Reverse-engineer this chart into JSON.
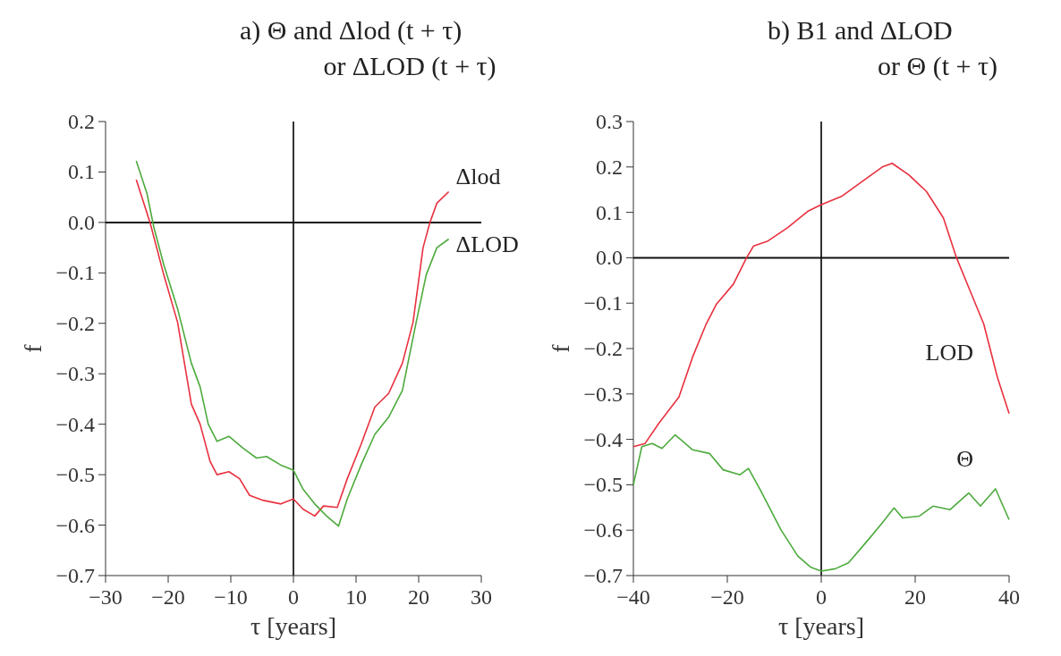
{
  "chart_data": [
    {
      "type": "line",
      "title": "a)  Θ and Δlod (t + τ)",
      "subtitle": "or  ΔLOD (t + τ)",
      "xlabel": "τ [years]",
      "ylabel": "f",
      "xlim": [
        -30,
        30
      ],
      "xticks": [
        {
          "value": -30,
          "label": "−30"
        },
        {
          "value": -20,
          "label": "−20"
        },
        {
          "value": -10,
          "label": "−10"
        },
        0,
        30,
        10,
        20
      ],
      "ylim": [
        -0.7,
        0.2
      ],
      "yticks": [
        {
          "value": -0.7,
          "label": "−0.7"
        },
        {
          "value": -0.6,
          "label": "−0.6"
        },
        {
          "value": -0.5,
          "label": "−0.5"
        },
        {
          "value": -0.4,
          "label": "−0.4"
        },
        {
          "value": -0.3,
          "label": "−0.3"
        },
        {
          "value": -0.2,
          "label": "−0.2"
        },
        {
          "value": -0.1,
          "label": "−0.1"
        },
        {
          "value": 0,
          "label": "0.0"
        },
        0.1,
        0.2
      ],
      "grid": false,
      "ref_lines": [
        {
          "axis": "x",
          "value": 0,
          "color": "#333333"
        },
        {
          "axis": "y",
          "value": 0,
          "color": "#111111"
        }
      ],
      "series": [
        {
          "name": "Δlod",
          "color": "#e8303f",
          "x": [
            -25.1,
            -22.9,
            -20.7,
            -18.5,
            -16.3,
            -14.9,
            -13.3,
            -12.2,
            -10.3,
            -8.6,
            -7.0,
            -4.8,
            -2.0,
            0,
            1.5,
            3.4,
            4.8,
            7.0,
            8.6,
            10.8,
            13.0,
            15.2,
            17.4,
            19.1,
            20.7,
            21.8,
            22.9,
            24.8
          ],
          "values": [
            0.085,
            0,
            -0.104,
            -0.198,
            -0.36,
            -0.4,
            -0.474,
            -0.5,
            -0.494,
            -0.508,
            -0.541,
            -0.551,
            -0.558,
            -0.548,
            -0.568,
            -0.582,
            -0.562,
            -0.565,
            -0.508,
            -0.44,
            -0.366,
            -0.339,
            -0.279,
            -0.198,
            -0.05,
            0,
            0.038,
            0.061
          ]
        },
        {
          "name": "ΔLOD",
          "color": "#4caa3c",
          "x": [
            -25.1,
            -23.4,
            -22.3,
            -20.7,
            -18.5,
            -16.3,
            -14.9,
            -13.6,
            -12.2,
            -10.3,
            -8.1,
            -5.9,
            -4.3,
            -2.0,
            0,
            1.5,
            3.4,
            5.3,
            7.2,
            8.6,
            10.8,
            13.0,
            15.2,
            17.4,
            19.6,
            21.2,
            22.9,
            24.8
          ],
          "values": [
            0.122,
            0.058,
            -0.009,
            -0.084,
            -0.171,
            -0.279,
            -0.326,
            -0.4,
            -0.434,
            -0.424,
            -0.447,
            -0.467,
            -0.464,
            -0.481,
            -0.491,
            -0.528,
            -0.558,
            -0.582,
            -0.602,
            -0.548,
            -0.481,
            -0.42,
            -0.386,
            -0.333,
            -0.198,
            -0.104,
            -0.05,
            -0.033
          ]
        }
      ]
    },
    {
      "type": "line",
      "title": "b)  B1 and ΔLOD",
      "subtitle": "or  Θ (t + τ)",
      "xlabel": "τ [years]",
      "ylabel": "f",
      "xlim": [
        -40,
        40
      ],
      "xticks": [
        {
          "value": -40,
          "label": "−40"
        },
        {
          "value": -20,
          "label": "−20"
        },
        0,
        20,
        40
      ],
      "ylim": [
        -0.7,
        0.3
      ],
      "yticks": [
        {
          "value": -0.7,
          "label": "−0.7"
        },
        {
          "value": -0.6,
          "label": "−0.6"
        },
        {
          "value": -0.5,
          "label": "−0.5"
        },
        {
          "value": -0.4,
          "label": "−0.4"
        },
        {
          "value": -0.3,
          "label": "−0.3"
        },
        {
          "value": -0.2,
          "label": "−0.2"
        },
        {
          "value": -0.1,
          "label": "−0.1"
        },
        {
          "value": 0,
          "label": "0.0"
        },
        0.1,
        0.2,
        0.3
      ],
      "grid": false,
      "ref_lines": [
        {
          "axis": "x",
          "value": 0,
          "color": "#333333"
        },
        {
          "axis": "y",
          "value": 0,
          "color": "#111111"
        }
      ],
      "series": [
        {
          "name": "LOD",
          "color": "#e8303f",
          "x": [
            -40,
            -37.5,
            -34.6,
            -30.3,
            -27.4,
            -24.5,
            -22.3,
            -18.7,
            -15.9,
            -14.4,
            -11.5,
            -7.2,
            -2.9,
            0,
            4.3,
            8.7,
            13.0,
            15.1,
            18.7,
            22.4,
            26.0,
            28.8,
            31.7,
            34.6,
            37.5,
            40
          ],
          "values": [
            -0.416,
            -0.409,
            -0.365,
            -0.307,
            -0.219,
            -0.146,
            -0.102,
            -0.058,
            0,
            0.026,
            0.036,
            0.066,
            0.102,
            0.117,
            0.135,
            0.168,
            0.2,
            0.208,
            0.182,
            0.146,
            0.088,
            0,
            -0.073,
            -0.146,
            -0.263,
            -0.343
          ]
        },
        {
          "name": "Θ",
          "color": "#4caa3c",
          "x": [
            -40,
            -38.2,
            -36.0,
            -33.9,
            -31.1,
            -27.4,
            -23.8,
            -20.9,
            -17.3,
            -15.5,
            -13.0,
            -8.6,
            -5.0,
            -2.2,
            0,
            3.0,
            5.8,
            10.1,
            13.0,
            15.5,
            17.3,
            20.9,
            23.8,
            27.4,
            31.4,
            33.9,
            37.1,
            40
          ],
          "values": [
            -0.5,
            -0.416,
            -0.409,
            -0.42,
            -0.39,
            -0.423,
            -0.431,
            -0.467,
            -0.478,
            -0.464,
            -0.511,
            -0.599,
            -0.657,
            -0.682,
            -0.69,
            -0.685,
            -0.672,
            -0.62,
            -0.584,
            -0.551,
            -0.573,
            -0.569,
            -0.547,
            -0.555,
            -0.518,
            -0.547,
            -0.509,
            -0.577
          ]
        }
      ]
    }
  ]
}
